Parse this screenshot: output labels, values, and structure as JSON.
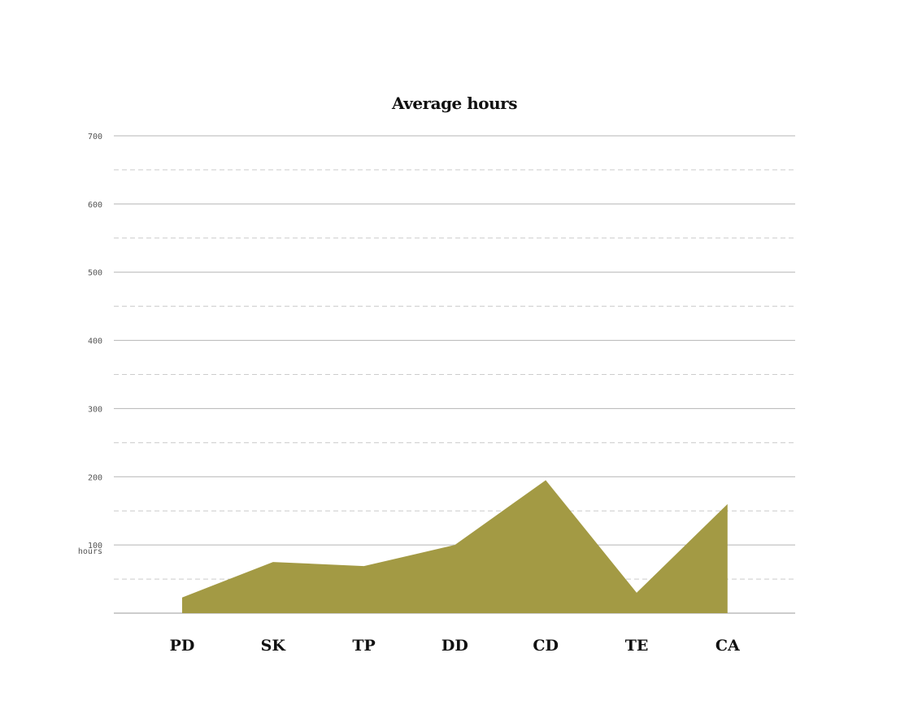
{
  "chart_data": {
    "type": "area",
    "title": "Average hours",
    "xlabel": "",
    "ylabel": "",
    "y_unit_label": "hours",
    "categories": [
      "PD",
      "SK",
      "TP",
      "DD",
      "CD",
      "TE",
      "CA"
    ],
    "series": [
      {
        "values": [
          23,
          75,
          69,
          100,
          195,
          30,
          160
        ],
        "color": "#a39a44"
      }
    ],
    "ylim": [
      0,
      700
    ],
    "y_ticks": [
      100,
      200,
      300,
      400,
      500,
      600,
      700
    ],
    "grid": true,
    "minor_grid_dashed": true
  }
}
